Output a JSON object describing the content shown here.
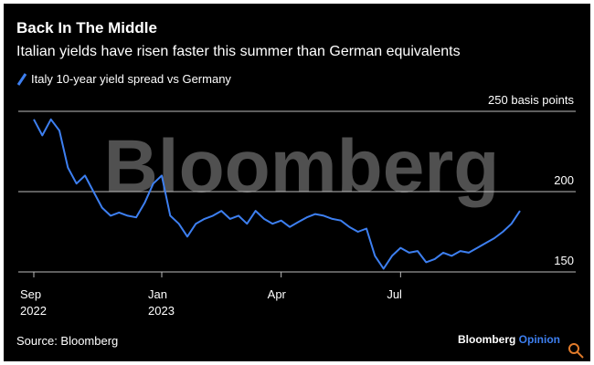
{
  "chart_data": {
    "type": "line",
    "title": "Back In The Middle",
    "subtitle": "Italian yields have risen faster this summer than German equivalents",
    "watermark": "Bloomberg",
    "source": "Source: Bloomberg",
    "brand": {
      "name": "Bloomberg",
      "suffix": "Opinion"
    },
    "categories": [
      "Sep 2022",
      null,
      null,
      null,
      null,
      null,
      null,
      null,
      null,
      null,
      null,
      null,
      null,
      null,
      null,
      "Jan 2023",
      null,
      null,
      null,
      null,
      null,
      null,
      null,
      null,
      null,
      null,
      null,
      null,
      null,
      "Apr",
      null,
      null,
      null,
      null,
      null,
      null,
      null,
      null,
      null,
      null,
      null,
      null,
      null,
      "Jul",
      null,
      null,
      null,
      null,
      null,
      null,
      null,
      null,
      null,
      null,
      null,
      null,
      null,
      null
    ],
    "series": [
      {
        "name": "Italy 10-year yield spread vs Germany",
        "color": "#3d7ff0",
        "values": [
          245,
          235,
          245,
          238,
          215,
          205,
          210,
          200,
          190,
          185,
          187,
          185,
          184,
          193,
          205,
          210,
          185,
          180,
          172,
          180,
          183,
          185,
          188,
          183,
          185,
          180,
          188,
          183,
          180,
          182,
          178,
          181,
          184,
          186,
          185,
          183,
          182,
          178,
          175,
          177,
          160,
          152,
          160,
          165,
          162,
          163,
          156,
          158,
          162,
          160,
          163,
          162,
          165,
          168,
          171,
          175,
          180,
          188
        ]
      }
    ],
    "ylim": [
      145,
      257
    ],
    "yticks": [
      150,
      200,
      {
        "value": 250,
        "label": "250 basis points"
      }
    ],
    "grid": true
  }
}
